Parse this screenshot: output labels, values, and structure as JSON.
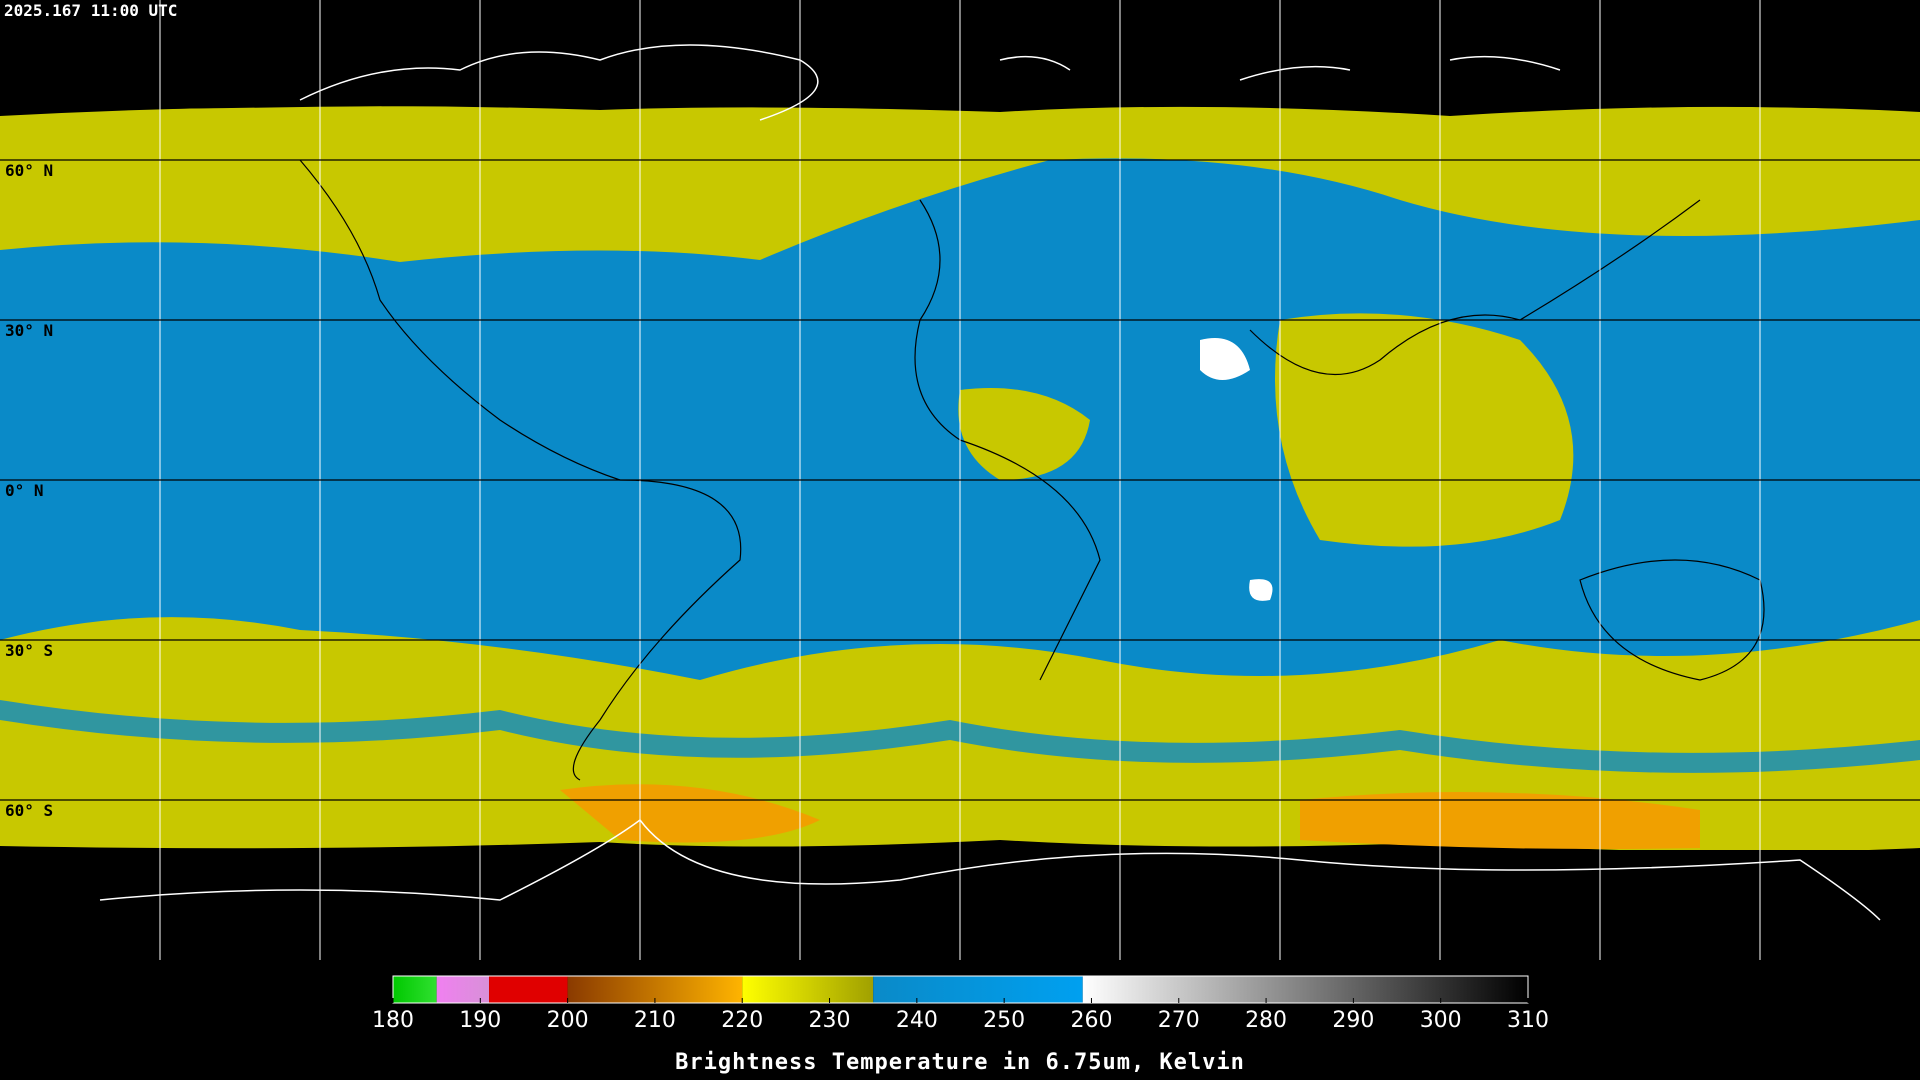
{
  "header": {
    "timestamp": "2025.167 11:00 UTC"
  },
  "map": {
    "latitude_labels": [
      "60° N",
      "30° N",
      "0° N",
      "30° S",
      "60° S"
    ]
  },
  "colorbar": {
    "range": [
      180,
      310
    ],
    "ticks": [
      180,
      190,
      200,
      210,
      220,
      230,
      240,
      250,
      260,
      270,
      280,
      290,
      300,
      310
    ],
    "title": "Brightness Temperature in 6.75um, Kelvin",
    "segments": [
      {
        "from": 180,
        "to": 185,
        "colors": [
          "#00c800",
          "#30e030"
        ]
      },
      {
        "from": 185,
        "to": 191,
        "colors": [
          "#f080f0",
          "#d890d8"
        ]
      },
      {
        "from": 191,
        "to": 200,
        "colors": [
          "#e00000",
          "#e00000"
        ]
      },
      {
        "from": 200,
        "to": 220,
        "colors": [
          "#8a3a00",
          "#ffb400"
        ]
      },
      {
        "from": 220,
        "to": 235,
        "colors": [
          "#ffff00",
          "#a0a000"
        ]
      },
      {
        "from": 235,
        "to": 259,
        "colors": [
          "#0a8ac8",
          "#00a0f0"
        ]
      },
      {
        "from": 259,
        "to": 310,
        "colors": [
          "#ffffff",
          "#000000"
        ]
      }
    ]
  }
}
